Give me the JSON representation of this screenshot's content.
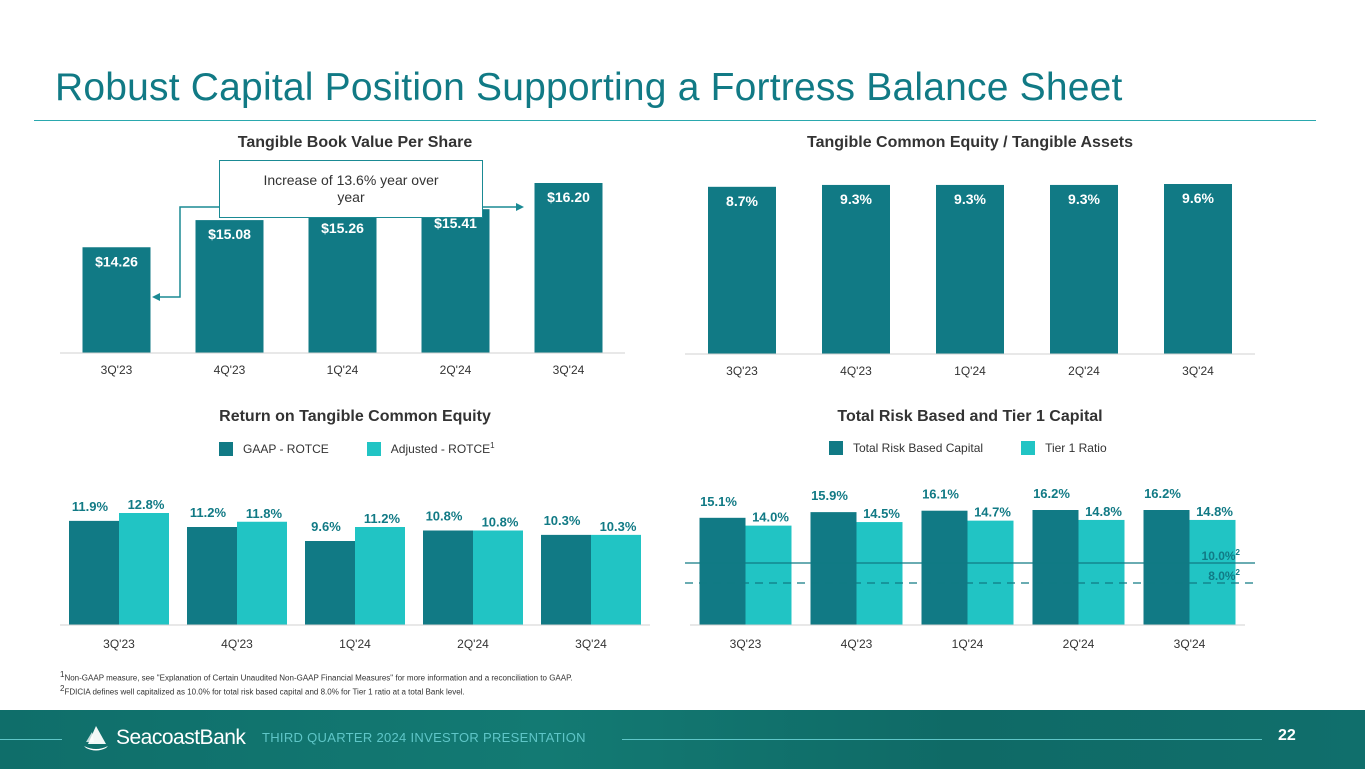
{
  "title": "Robust Capital Position Supporting a Fortress Balance Sheet",
  "colors": {
    "dark_teal": "#117a85",
    "light_teal": "#21c4c4",
    "title": "#117a85"
  },
  "chart_data": [
    {
      "type": "bar",
      "title": "Tangible Book Value Per Share",
      "categories": [
        "3Q'23",
        "4Q'23",
        "1Q'24",
        "2Q'24",
        "3Q'24"
      ],
      "values": [
        14.26,
        15.08,
        15.26,
        15.41,
        16.2
      ],
      "labels": [
        "$14.26",
        "$15.08",
        "$15.26",
        "$15.41",
        "$16.20"
      ],
      "annotation": "Increase of 13.6% year over year",
      "ylim": [
        13.0,
        16.2
      ]
    },
    {
      "type": "bar",
      "title": "Tangible Common Equity / Tangible Assets",
      "categories": [
        "3Q'23",
        "4Q'23",
        "1Q'24",
        "2Q'24",
        "3Q'24"
      ],
      "values": [
        8.7,
        9.3,
        9.3,
        9.3,
        9.6
      ],
      "labels": [
        "8.7%",
        "9.3%",
        "9.3%",
        "9.3%",
        "9.6%"
      ],
      "ylim": [
        0,
        9.6
      ]
    },
    {
      "type": "bar",
      "title": "Return on Tangible Common Equity",
      "categories": [
        "3Q'23",
        "4Q'23",
        "1Q'24",
        "2Q'24",
        "3Q'24"
      ],
      "series": [
        {
          "name": "GAAP - ROTCE",
          "values": [
            11.9,
            11.2,
            9.6,
            10.8,
            10.3
          ],
          "labels": [
            "11.9%",
            "11.2%",
            "9.6%",
            "10.8%",
            "10.3%"
          ]
        },
        {
          "name": "Adjusted - ROTCE",
          "name_sup": "1",
          "values": [
            12.8,
            11.8,
            11.2,
            10.8,
            10.3
          ],
          "labels": [
            "12.8%",
            "11.8%",
            "11.2%",
            "10.8%",
            "10.3%"
          ]
        }
      ],
      "ylim": [
        0,
        12.8
      ]
    },
    {
      "type": "bar",
      "title": "Total Risk Based and Tier 1 Capital",
      "categories": [
        "3Q'23",
        "4Q'23",
        "1Q'24",
        "2Q'24",
        "3Q'24"
      ],
      "series": [
        {
          "name": "Total Risk Based Capital",
          "values": [
            15.1,
            15.9,
            16.1,
            16.2,
            16.2
          ],
          "labels": [
            "15.1%",
            "15.9%",
            "16.1%",
            "16.2%",
            "16.2%"
          ]
        },
        {
          "name": "Tier 1 Ratio",
          "values": [
            14.0,
            14.5,
            14.7,
            14.8,
            14.8
          ],
          "labels": [
            "14.0%",
            "14.5%",
            "14.7%",
            "14.8%",
            "14.8%"
          ]
        }
      ],
      "reference_lines": [
        {
          "value": 10.0,
          "label": "10.0%",
          "sup": "2",
          "style": "solid"
        },
        {
          "value": 8.0,
          "label": "8.0%",
          "sup": "2",
          "style": "dashed"
        }
      ],
      "ylim": [
        0,
        16.2
      ]
    }
  ],
  "footnotes": [
    {
      "sup": "1",
      "text": "Non-GAAP measure, see \"Explanation of Certain Unaudited Non-GAAP Financial Measures\" for more information and a reconciliation to GAAP."
    },
    {
      "sup": "2",
      "text": "FDICIA defines well capitalized as 10.0% for total risk based capital and 8.0% for Tier 1 ratio at a total Bank level."
    }
  ],
  "footer": {
    "brand": "SeacoastBank",
    "presentation": "THIRD QUARTER 2024 INVESTOR PRESENTATION",
    "page_number": "22",
    "logo_icon": "sailboat-logo-icon"
  }
}
